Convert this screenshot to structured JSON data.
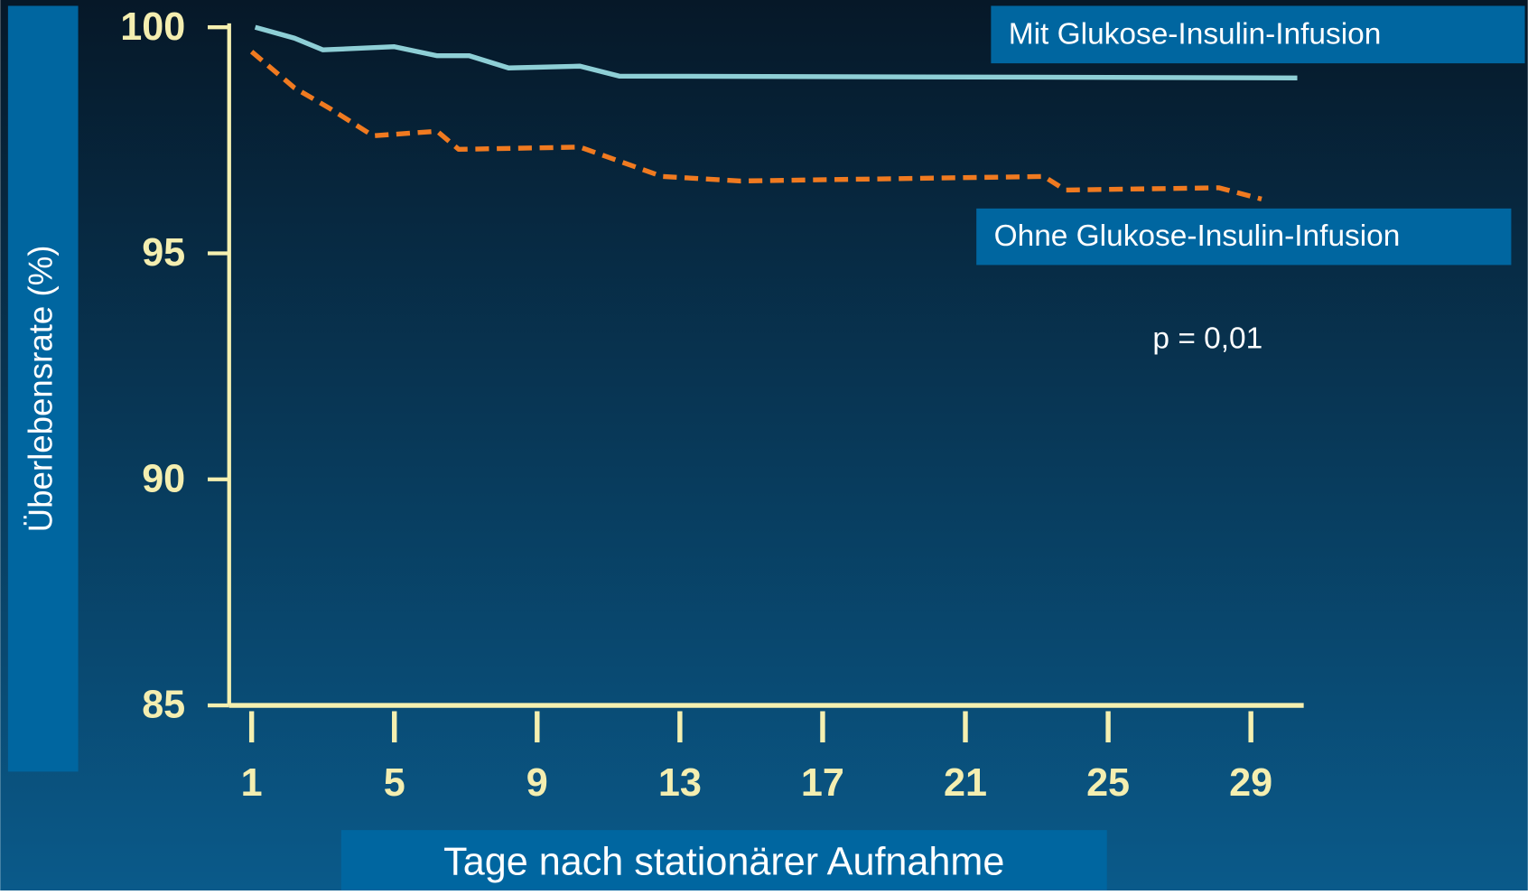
{
  "chart_data": {
    "type": "line",
    "xlabel": "Tage nach stationärer Aufnahme",
    "ylabel": "Überlebensrate (%)",
    "annotation": "p = 0,01",
    "xlim": [
      0.37,
      30.48
    ],
    "xticks": [
      1,
      5,
      9,
      13,
      17,
      21,
      25,
      29
    ],
    "ylim": [
      85,
      100
    ],
    "yticks": [
      85,
      90,
      95,
      100
    ],
    "series": [
      {
        "name": "Mit Glukose-Insulin-Infusion",
        "color": "#8ecfd6",
        "dashed": false,
        "x": [
          1.1,
          1.7,
          2.2,
          3,
          5,
          6.2,
          7.1,
          8.2,
          10.2,
          11.3,
          30.3
        ],
        "values": [
          100,
          99.87,
          99.76,
          99.5,
          99.57,
          99.37,
          99.37,
          99.1,
          99.14,
          98.92,
          98.88
        ]
      },
      {
        "name": "Ohne Glukose-Insulin-Infusion",
        "color": "#f07a20",
        "dashed": true,
        "x": [
          1,
          2.2,
          3.2,
          4.4,
          6.2,
          6.8,
          10.2,
          12.5,
          14.7,
          23.2,
          23.8,
          28.1,
          29.3
        ],
        "values": [
          99.46,
          98.66,
          98.2,
          97.6,
          97.7,
          97.3,
          97.35,
          96.7,
          96.6,
          96.7,
          96.4,
          96.45,
          96.2
        ]
      }
    ]
  }
}
